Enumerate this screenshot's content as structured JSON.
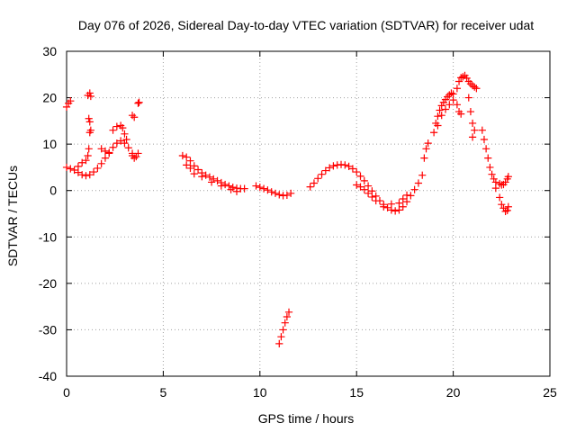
{
  "chart_data": {
    "type": "scatter",
    "title": "Day 076 of 2026, Sidereal Day-to-day VTEC variation (SDTVAR) for receiver udat",
    "xlabel": "GPS time / hours",
    "ylabel": "SDTVAR / TECUs",
    "xlim": [
      0,
      25
    ],
    "ylim": [
      -40,
      30
    ],
    "xticks": [
      0,
      5,
      10,
      15,
      20,
      25
    ],
    "yticks": [
      -40,
      -30,
      -20,
      -10,
      0,
      10,
      20,
      30
    ],
    "xtick_labels": [
      "0",
      "5",
      "10",
      "15",
      "20",
      "25"
    ],
    "ytick_labels": [
      "-40",
      "-30",
      "-20",
      "-10",
      "0",
      "10",
      "20",
      "30"
    ],
    "grid": true,
    "marker": "plus",
    "series": [
      {
        "name": "SDTVAR",
        "color": "#ff0000",
        "points": [
          [
            0.0,
            18.0
          ],
          [
            0.1,
            18.8
          ],
          [
            0.2,
            19.3
          ],
          [
            0.0,
            5.0
          ],
          [
            0.2,
            4.7
          ],
          [
            0.4,
            4.4
          ],
          [
            0.6,
            3.9
          ],
          [
            0.8,
            3.4
          ],
          [
            1.0,
            3.2
          ],
          [
            1.2,
            3.4
          ],
          [
            1.4,
            4.0
          ],
          [
            1.6,
            4.8
          ],
          [
            1.8,
            5.8
          ],
          [
            2.0,
            7.0
          ],
          [
            2.2,
            8.2
          ],
          [
            2.4,
            9.3
          ],
          [
            2.6,
            10.2
          ],
          [
            2.8,
            10.7
          ],
          [
            3.0,
            10.2
          ],
          [
            3.2,
            9.2
          ],
          [
            3.4,
            8.0
          ],
          [
            3.6,
            7.3
          ],
          [
            0.6,
            5.2
          ],
          [
            0.8,
            6.0
          ],
          [
            1.0,
            6.5
          ],
          [
            1.1,
            7.5
          ],
          [
            1.15,
            9.0
          ],
          [
            1.1,
            20.5
          ],
          [
            1.2,
            21.0
          ],
          [
            1.25,
            20.3
          ],
          [
            1.15,
            15.5
          ],
          [
            1.2,
            14.8
          ],
          [
            1.25,
            13.0
          ],
          [
            1.2,
            12.5
          ],
          [
            1.8,
            9.0
          ],
          [
            2.0,
            8.5
          ],
          [
            2.2,
            8.0
          ],
          [
            2.4,
            13.0
          ],
          [
            2.6,
            13.8
          ],
          [
            2.8,
            14.0
          ],
          [
            2.9,
            13.5
          ],
          [
            3.0,
            12.2
          ],
          [
            3.1,
            11.0
          ],
          [
            3.5,
            15.8
          ],
          [
            3.4,
            16.2
          ],
          [
            3.7,
            18.8
          ],
          [
            3.75,
            19.0
          ],
          [
            3.5,
            7.0
          ],
          [
            3.7,
            8.0
          ],
          [
            3.4,
            7.5
          ],
          [
            6.0,
            7.5
          ],
          [
            6.2,
            7.2
          ],
          [
            6.4,
            6.4
          ],
          [
            6.6,
            5.3
          ],
          [
            6.8,
            4.5
          ],
          [
            7.0,
            3.8
          ],
          [
            7.2,
            3.3
          ],
          [
            7.4,
            2.9
          ],
          [
            7.6,
            2.5
          ],
          [
            7.8,
            2.1
          ],
          [
            8.0,
            1.7
          ],
          [
            8.2,
            1.3
          ],
          [
            8.4,
            1.0
          ],
          [
            8.6,
            0.7
          ],
          [
            8.8,
            0.5
          ],
          [
            9.0,
            0.4
          ],
          [
            9.2,
            0.4
          ],
          [
            6.2,
            5.5
          ],
          [
            6.4,
            4.8
          ],
          [
            6.6,
            3.6
          ],
          [
            7.0,
            3.0
          ],
          [
            7.5,
            1.8
          ],
          [
            8.0,
            1.0
          ],
          [
            8.5,
            0.2
          ],
          [
            8.8,
            -0.2
          ],
          [
            9.8,
            1.0
          ],
          [
            10.0,
            0.7
          ],
          [
            10.2,
            0.4
          ],
          [
            10.4,
            0.1
          ],
          [
            10.6,
            -0.3
          ],
          [
            10.8,
            -0.6
          ],
          [
            11.0,
            -0.9
          ],
          [
            11.2,
            -1.1
          ],
          [
            11.4,
            -1.0
          ],
          [
            11.6,
            -0.6
          ],
          [
            11.0,
            -33.0
          ],
          [
            11.1,
            -31.5
          ],
          [
            11.2,
            -30.0
          ],
          [
            11.3,
            -28.5
          ],
          [
            11.4,
            -27.2
          ],
          [
            11.5,
            -26.2
          ],
          [
            12.6,
            0.8
          ],
          [
            12.8,
            1.6
          ],
          [
            13.0,
            2.6
          ],
          [
            13.2,
            3.5
          ],
          [
            13.4,
            4.3
          ],
          [
            13.6,
            4.9
          ],
          [
            13.8,
            5.3
          ],
          [
            14.0,
            5.5
          ],
          [
            14.2,
            5.6
          ],
          [
            14.4,
            5.5
          ],
          [
            14.6,
            5.2
          ],
          [
            14.8,
            4.7
          ],
          [
            15.0,
            4.0
          ],
          [
            15.2,
            3.1
          ],
          [
            15.4,
            2.1
          ],
          [
            15.6,
            1.0
          ],
          [
            15.8,
            -0.1
          ],
          [
            16.0,
            -1.2
          ],
          [
            16.2,
            -2.2
          ],
          [
            16.4,
            -3.0
          ],
          [
            16.6,
            -3.7
          ],
          [
            16.8,
            -4.2
          ],
          [
            17.0,
            -4.4
          ],
          [
            17.2,
            -4.2
          ],
          [
            17.4,
            -3.5
          ],
          [
            17.6,
            -2.4
          ],
          [
            17.8,
            -1.1
          ],
          [
            18.0,
            0.2
          ],
          [
            18.2,
            1.6
          ],
          [
            18.4,
            3.3
          ],
          [
            15.0,
            1.2
          ],
          [
            15.2,
            0.8
          ],
          [
            15.4,
            0.2
          ],
          [
            15.6,
            -0.6
          ],
          [
            15.8,
            -1.4
          ],
          [
            16.0,
            -2.2
          ],
          [
            16.4,
            -3.5
          ],
          [
            16.8,
            -2.9
          ],
          [
            17.2,
            -2.7
          ],
          [
            17.4,
            -1.8
          ],
          [
            17.6,
            -1.0
          ],
          [
            18.5,
            7.0
          ],
          [
            18.6,
            9.0
          ],
          [
            18.7,
            10.2
          ],
          [
            19.0,
            12.5
          ],
          [
            19.1,
            14.5
          ],
          [
            19.2,
            16.0
          ],
          [
            19.3,
            17.3
          ],
          [
            19.4,
            18.3
          ],
          [
            19.5,
            19.0
          ],
          [
            19.6,
            19.6
          ],
          [
            19.7,
            20.2
          ],
          [
            19.8,
            20.6
          ],
          [
            19.9,
            21.0
          ],
          [
            20.0,
            20.8
          ],
          [
            19.2,
            14.0
          ],
          [
            19.4,
            16.2
          ],
          [
            19.6,
            17.5
          ],
          [
            19.8,
            18.5
          ],
          [
            20.0,
            19.5
          ],
          [
            20.2,
            22.0
          ],
          [
            20.3,
            23.5
          ],
          [
            20.4,
            24.3
          ],
          [
            20.5,
            24.5
          ],
          [
            20.6,
            24.8
          ],
          [
            20.7,
            24.2
          ],
          [
            20.8,
            23.5
          ],
          [
            20.9,
            23.0
          ],
          [
            21.0,
            22.6
          ],
          [
            21.1,
            22.3
          ],
          [
            21.2,
            22.0
          ],
          [
            20.2,
            18.5
          ],
          [
            20.3,
            17.0
          ],
          [
            20.4,
            16.5
          ],
          [
            20.8,
            20.0
          ],
          [
            20.9,
            17.0
          ],
          [
            21.0,
            14.5
          ],
          [
            21.1,
            13.0
          ],
          [
            21.0,
            11.5
          ],
          [
            21.5,
            13.0
          ],
          [
            21.6,
            11.0
          ],
          [
            21.7,
            9.0
          ],
          [
            21.8,
            7.0
          ],
          [
            21.9,
            5.0
          ],
          [
            22.0,
            3.5
          ],
          [
            22.1,
            2.5
          ],
          [
            22.2,
            1.8
          ],
          [
            22.4,
            1.5
          ],
          [
            22.5,
            1.2
          ],
          [
            22.6,
            1.3
          ],
          [
            22.7,
            1.8
          ],
          [
            22.8,
            2.5
          ],
          [
            22.85,
            3.0
          ],
          [
            22.2,
            0.5
          ],
          [
            22.4,
            -1.5
          ],
          [
            22.5,
            -3.0
          ],
          [
            22.6,
            -3.8
          ],
          [
            22.7,
            -4.5
          ],
          [
            22.8,
            -4.3
          ],
          [
            22.85,
            -3.5
          ]
        ]
      }
    ]
  }
}
